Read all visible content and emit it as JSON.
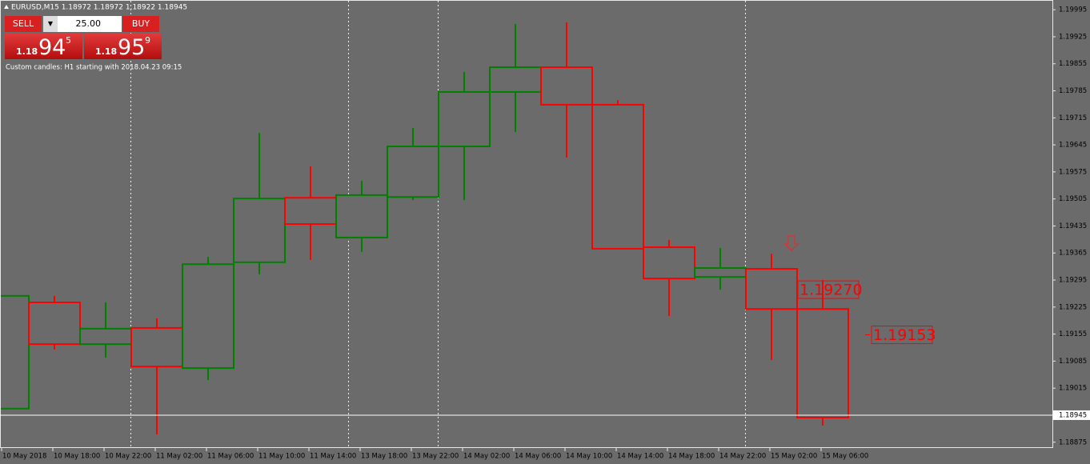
{
  "header": {
    "symbol_info": "EURUSD,M15  1.18972 1.18972 1.18922 1.18945"
  },
  "trade_panel": {
    "sell": "SELL",
    "buy": "BUY",
    "volume": "25.00",
    "sell_price": {
      "big": "1.18",
      "main": "94",
      "sup": "5"
    },
    "buy_price": {
      "big": "1.18",
      "main": "95",
      "sup": "9"
    }
  },
  "note": "Custom candles: H1 starting with 2018.04.23 09:15",
  "chart_data": {
    "type": "candlestick",
    "ylim": [
      1.1886,
      1.20016
    ],
    "yticks": [
      1.19995,
      1.19925,
      1.19855,
      1.19785,
      1.19715,
      1.19645,
      1.19575,
      1.19505,
      1.19435,
      1.19365,
      1.19295,
      1.19225,
      1.19155,
      1.19085,
      1.19015,
      1.18875
    ],
    "x_labels": [
      "10 May 2018",
      "10 May 18:00",
      "10 May 22:00",
      "11 May 02:00",
      "11 May 06:00",
      "11 May 10:00",
      "11 May 14:00",
      "13 May 18:00",
      "13 May 22:00",
      "14 May 02:00",
      "14 May 06:00",
      "14 May 10:00",
      "14 May 14:00",
      "14 May 18:00",
      "14 May 22:00",
      "15 May 02:00",
      "15 May 06:00"
    ],
    "open": [
      1.18962,
      1.19237,
      1.19129,
      1.19171,
      1.19067,
      1.19341,
      1.19508,
      1.19405,
      1.1951,
      1.19641,
      1.19782,
      1.19846,
      1.19749,
      1.1938,
      1.19303,
      1.19324,
      1.1922
    ],
    "high": [
      1.19254,
      1.19254,
      1.19237,
      1.19196,
      1.19355,
      1.19676,
      1.19589,
      1.19552,
      1.19689,
      1.19834,
      1.19958,
      1.19962,
      1.19761,
      1.19399,
      1.19378,
      1.19363,
      1.19295
    ],
    "low": [
      1.18962,
      1.19115,
      1.19094,
      1.18895,
      1.19036,
      1.1931,
      1.19347,
      1.19368,
      1.19502,
      1.19502,
      1.19678,
      1.19612,
      1.19376,
      1.19202,
      1.1927,
      1.19088,
      1.18918
    ],
    "close": [
      1.19254,
      1.19129,
      1.19169,
      1.19071,
      1.19336,
      1.19506,
      1.1944,
      1.19515,
      1.19641,
      1.19782,
      1.19846,
      1.19749,
      1.19376,
      1.19299,
      1.19326,
      1.1922,
      1.18939
    ],
    "up_color": "#008000",
    "down_color": "#ff0000",
    "current_price": 1.18945,
    "annotations": [
      {
        "value": 1.1927,
        "label": "1.19270"
      },
      {
        "value": 1.19153,
        "label": "1.19153"
      }
    ],
    "annotation_color": "#ff0000"
  }
}
